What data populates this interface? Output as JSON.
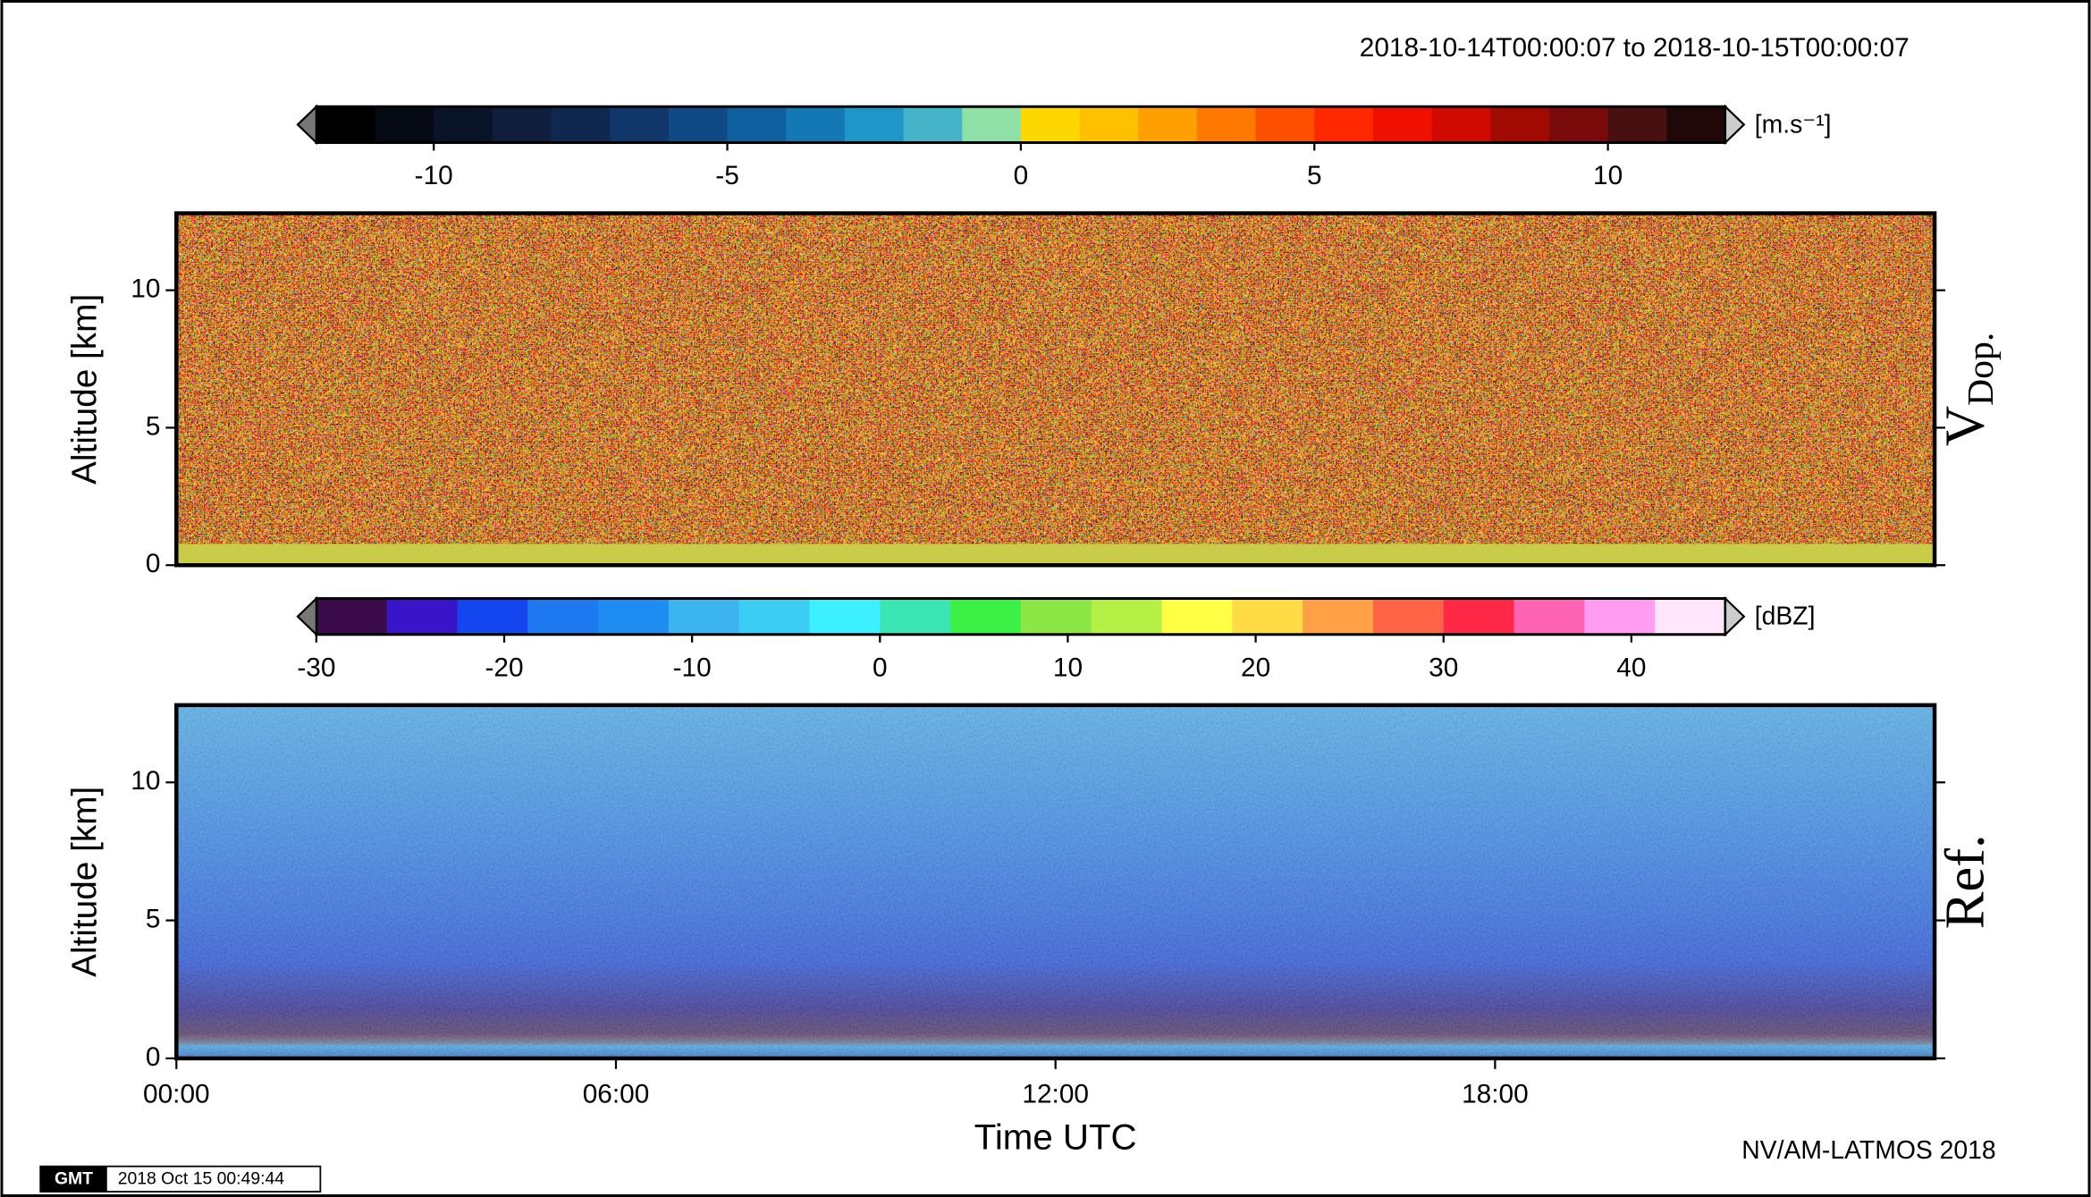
{
  "page": {
    "title": "2018-10-14T00:00:07 to 2018-10-15T00:00:07",
    "credit": "NV/AM-LATMOS 2018",
    "logo": "GMT",
    "timestamp": "2018 Oct 15 00:49:44"
  },
  "chart_data": [
    {
      "type": "heatmap",
      "ylabel": "Altitude [km]",
      "side_label": "V",
      "side_label_sub": "Dop.",
      "xlim": [
        0,
        24
      ],
      "ylim": [
        0,
        12.8
      ],
      "yticks": [
        0,
        5,
        10
      ],
      "colorbar": {
        "lim": [
          -12,
          12
        ],
        "ticks": [
          -10,
          -5,
          0,
          5,
          10
        ],
        "unit": "[m.s⁻¹]",
        "colors": [
          "#000000",
          "#050a14",
          "#0a1428",
          "#0f1e3c",
          "#0f2850",
          "#10366a",
          "#0f4a84",
          "#0f609e",
          "#1478b4",
          "#1e96c8",
          "#46b4c8",
          "#8ee0a6",
          "#ffd700",
          "#ffc000",
          "#ffa000",
          "#ff7800",
          "#ff5000",
          "#ff2800",
          "#f01000",
          "#d00a00",
          "#a00a00",
          "#780a0a",
          "#481010",
          "#200808"
        ]
      }
    },
    {
      "type": "heatmap",
      "ylabel": "Altitude [km]",
      "side_label": "Ref.",
      "xlabel": "Time UTC",
      "xlim": [
        0,
        24
      ],
      "ylim": [
        0,
        12.8
      ],
      "yticks": [
        0,
        5,
        10
      ],
      "xticks": [
        {
          "value": 0,
          "label": "00:00"
        },
        {
          "value": 6,
          "label": "06:00"
        },
        {
          "value": 12,
          "label": "12:00"
        },
        {
          "value": 18,
          "label": "18:00"
        }
      ],
      "colorbar": {
        "lim": [
          -30,
          45
        ],
        "ticks": [
          -30,
          -20,
          -10,
          0,
          10,
          20,
          30,
          40
        ],
        "unit": "[dBZ]",
        "colors": [
          "#3a0a4a",
          "#3a14c8",
          "#1446f0",
          "#1e78f0",
          "#1e8cf0",
          "#3cb4f0",
          "#3ccdf5",
          "#3cf0ff",
          "#3ce6b4",
          "#3cf046",
          "#8ce646",
          "#b4f046",
          "#ffff46",
          "#ffdc46",
          "#ffa046",
          "#ff6446",
          "#ff2846",
          "#ff64b4",
          "#ff9bf0",
          "#ffe6fa"
        ]
      }
    }
  ]
}
